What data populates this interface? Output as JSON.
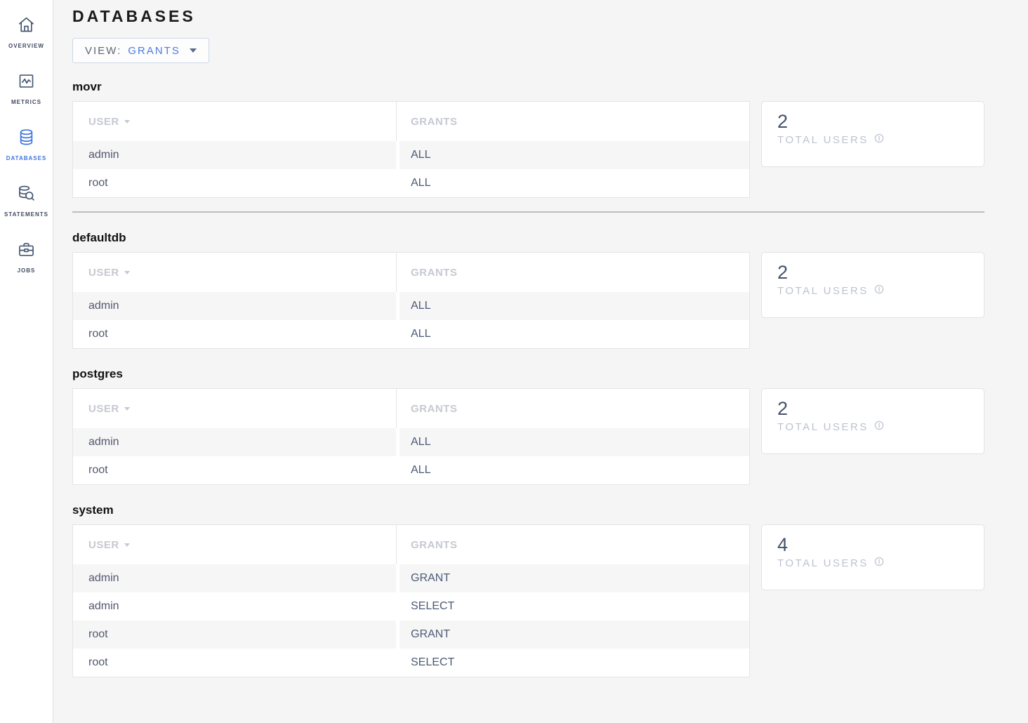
{
  "page": {
    "title": "DATABASES"
  },
  "sidebar": {
    "items": [
      {
        "label": "OVERVIEW",
        "icon": "home-icon",
        "active": false
      },
      {
        "label": "METRICS",
        "icon": "metrics-icon",
        "active": false
      },
      {
        "label": "DATABASES",
        "icon": "databases-icon",
        "active": true
      },
      {
        "label": "STATEMENTS",
        "icon": "statements-icon",
        "active": false
      },
      {
        "label": "JOBS",
        "icon": "jobs-icon",
        "active": false
      }
    ]
  },
  "view_selector": {
    "label": "VIEW:",
    "value": "GRANTS",
    "caret": "caret-down-icon"
  },
  "columns": {
    "user": "USER",
    "grants": "GRANTS"
  },
  "total_users_label": "TOTAL USERS",
  "databases": [
    {
      "name": "movr",
      "total_users": "2",
      "rows": [
        {
          "user": "admin",
          "grants": "ALL"
        },
        {
          "user": "root",
          "grants": "ALL"
        }
      ],
      "divider_after": true
    },
    {
      "name": "defaultdb",
      "total_users": "2",
      "rows": [
        {
          "user": "admin",
          "grants": "ALL"
        },
        {
          "user": "root",
          "grants": "ALL"
        }
      ],
      "divider_after": false
    },
    {
      "name": "postgres",
      "total_users": "2",
      "rows": [
        {
          "user": "admin",
          "grants": "ALL"
        },
        {
          "user": "root",
          "grants": "ALL"
        }
      ],
      "divider_after": false
    },
    {
      "name": "system",
      "total_users": "4",
      "rows": [
        {
          "user": "admin",
          "grants": "GRANT"
        },
        {
          "user": "admin",
          "grants": "SELECT"
        },
        {
          "user": "root",
          "grants": "GRANT"
        },
        {
          "user": "root",
          "grants": "SELECT"
        }
      ],
      "divider_after": false
    }
  ],
  "colors": {
    "accent_blue": "#3f74de",
    "page_background": "#f5f5f6",
    "table_header_text": "#c6c9d2",
    "body_text": "#51586c",
    "row_stripe": "#f6f6f7",
    "card_number": "#46536b",
    "card_label": "#bcc3cf",
    "section_divider": "#bdbdbd",
    "sidebar_label": "#404a63"
  }
}
